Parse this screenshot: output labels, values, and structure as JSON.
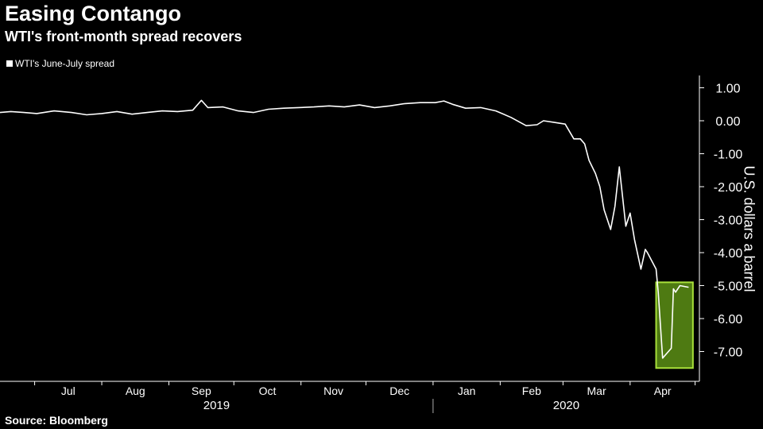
{
  "header": {
    "title": "Easing Contango",
    "subtitle": "WTI's front-month spread recovers"
  },
  "footer": {
    "source": "Source: Bloomberg"
  },
  "colors": {
    "background": "#000000",
    "line": "#ffffff",
    "highlight_fill": "#4e7a12",
    "highlight_stroke": "#a8e03a"
  },
  "chart_data": {
    "type": "line",
    "title": "Easing Contango",
    "subtitle": "WTI's front-month spread recovers",
    "ylabel": "U.S. dollars a barrel",
    "xlabel": "",
    "ylim": [
      -7.8,
      1.4
    ],
    "y_ticks": [
      "1.00",
      "0.00",
      "-1.00",
      "-2.00",
      "-3.00",
      "-4.00",
      "-5.00",
      "-6.00",
      "-7.00"
    ],
    "y_tick_values": [
      1,
      0,
      -1,
      -2,
      -3,
      -4,
      -5,
      -6,
      -7
    ],
    "y_axis_side": "right",
    "grid": false,
    "x_month_labels": [
      "Jul",
      "Aug",
      "Sep",
      "Oct",
      "Nov",
      "Dec",
      "Jan",
      "Feb",
      "Mar",
      "Apr"
    ],
    "x_year_labels": [
      "2019",
      "2020"
    ],
    "legend": {
      "position": "top-left",
      "entries": [
        "WTI's June-July spread"
      ]
    },
    "highlight": {
      "description_visible": false,
      "x_range": [
        "2020-04-13",
        "2020-04-30"
      ],
      "y_range": [
        -7.5,
        -4.9
      ]
    },
    "series": [
      {
        "name": "WTI's June-July spread",
        "x": [
          "2019-06-15",
          "2019-06-20",
          "2019-06-26",
          "2019-07-02",
          "2019-07-10",
          "2019-07-18",
          "2019-07-25",
          "2019-08-01",
          "2019-08-08",
          "2019-08-15",
          "2019-08-22",
          "2019-08-29",
          "2019-09-05",
          "2019-09-12",
          "2019-09-16",
          "2019-09-19",
          "2019-09-26",
          "2019-10-03",
          "2019-10-10",
          "2019-10-17",
          "2019-10-24",
          "2019-10-31",
          "2019-11-07",
          "2019-11-14",
          "2019-11-21",
          "2019-11-28",
          "2019-12-05",
          "2019-12-12",
          "2019-12-19",
          "2019-12-26",
          "2020-01-02",
          "2020-01-06",
          "2020-01-10",
          "2020-01-16",
          "2020-01-23",
          "2020-01-30",
          "2020-02-06",
          "2020-02-13",
          "2020-02-18",
          "2020-02-21",
          "2020-02-26",
          "2020-03-02",
          "2020-03-06",
          "2020-03-09",
          "2020-03-11",
          "2020-03-13",
          "2020-03-16",
          "2020-03-18",
          "2020-03-20",
          "2020-03-23",
          "2020-03-25",
          "2020-03-27",
          "2020-03-30",
          "2020-04-01",
          "2020-04-03",
          "2020-04-06",
          "2020-04-08",
          "2020-04-09",
          "2020-04-13",
          "2020-04-14",
          "2020-04-16",
          "2020-04-20",
          "2020-04-21",
          "2020-04-22",
          "2020-04-24",
          "2020-04-28"
        ],
        "values": [
          0.25,
          0.28,
          0.25,
          0.22,
          0.3,
          0.25,
          0.18,
          0.22,
          0.28,
          0.2,
          0.25,
          0.3,
          0.28,
          0.32,
          0.62,
          0.4,
          0.42,
          0.3,
          0.25,
          0.35,
          0.38,
          0.4,
          0.42,
          0.45,
          0.42,
          0.48,
          0.4,
          0.45,
          0.52,
          0.55,
          0.55,
          0.6,
          0.5,
          0.38,
          0.4,
          0.3,
          0.1,
          -0.15,
          -0.12,
          0.0,
          -0.05,
          -0.1,
          -0.55,
          -0.55,
          -0.7,
          -1.2,
          -1.6,
          -2.0,
          -2.7,
          -3.3,
          -2.6,
          -1.4,
          -3.2,
          -2.8,
          -3.6,
          -4.5,
          -3.9,
          -4.0,
          -4.5,
          -5.2,
          -7.2,
          -6.9,
          -5.1,
          -5.2,
          -5.0,
          -5.05
        ]
      }
    ]
  }
}
